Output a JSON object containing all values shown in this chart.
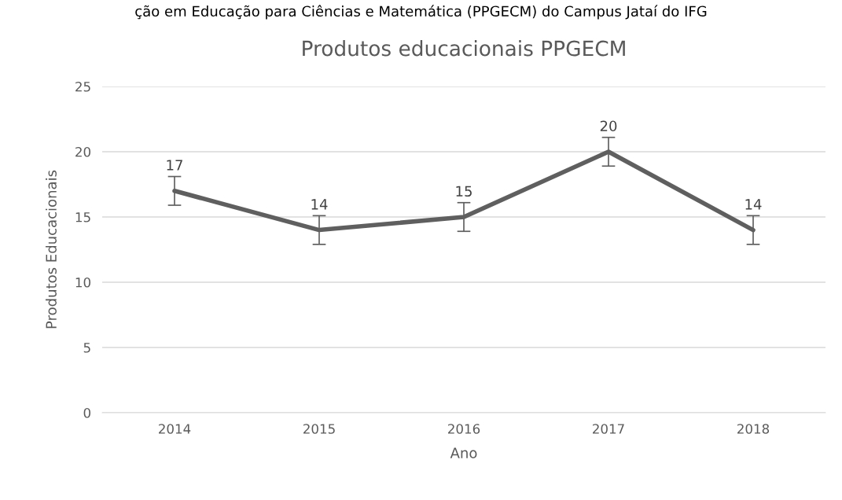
{
  "chart_data": {
    "type": "line",
    "title": "Produtos educacionais PPGECM",
    "xlabel": "Ano",
    "ylabel": "Produtos Educacionais",
    "annotations": [
      "ção em Educação para Ciências e Matemática (PPGECM) do Campus Jataí do IFG"
    ],
    "categories": [
      "2014",
      "2015",
      "2016",
      "2017",
      "2018"
    ],
    "series": [
      {
        "color": "#5f5f5f",
        "values": [
          17,
          14,
          15,
          20,
          14
        ],
        "errors": [
          1.1,
          1.1,
          1.1,
          1.1,
          1.1
        ]
      }
    ],
    "ylim": [
      0,
      25
    ],
    "yticks": [
      0,
      5,
      10,
      15,
      20,
      25
    ],
    "grid": "y",
    "data_labels": true,
    "marker": "none",
    "line_style": "solid"
  }
}
